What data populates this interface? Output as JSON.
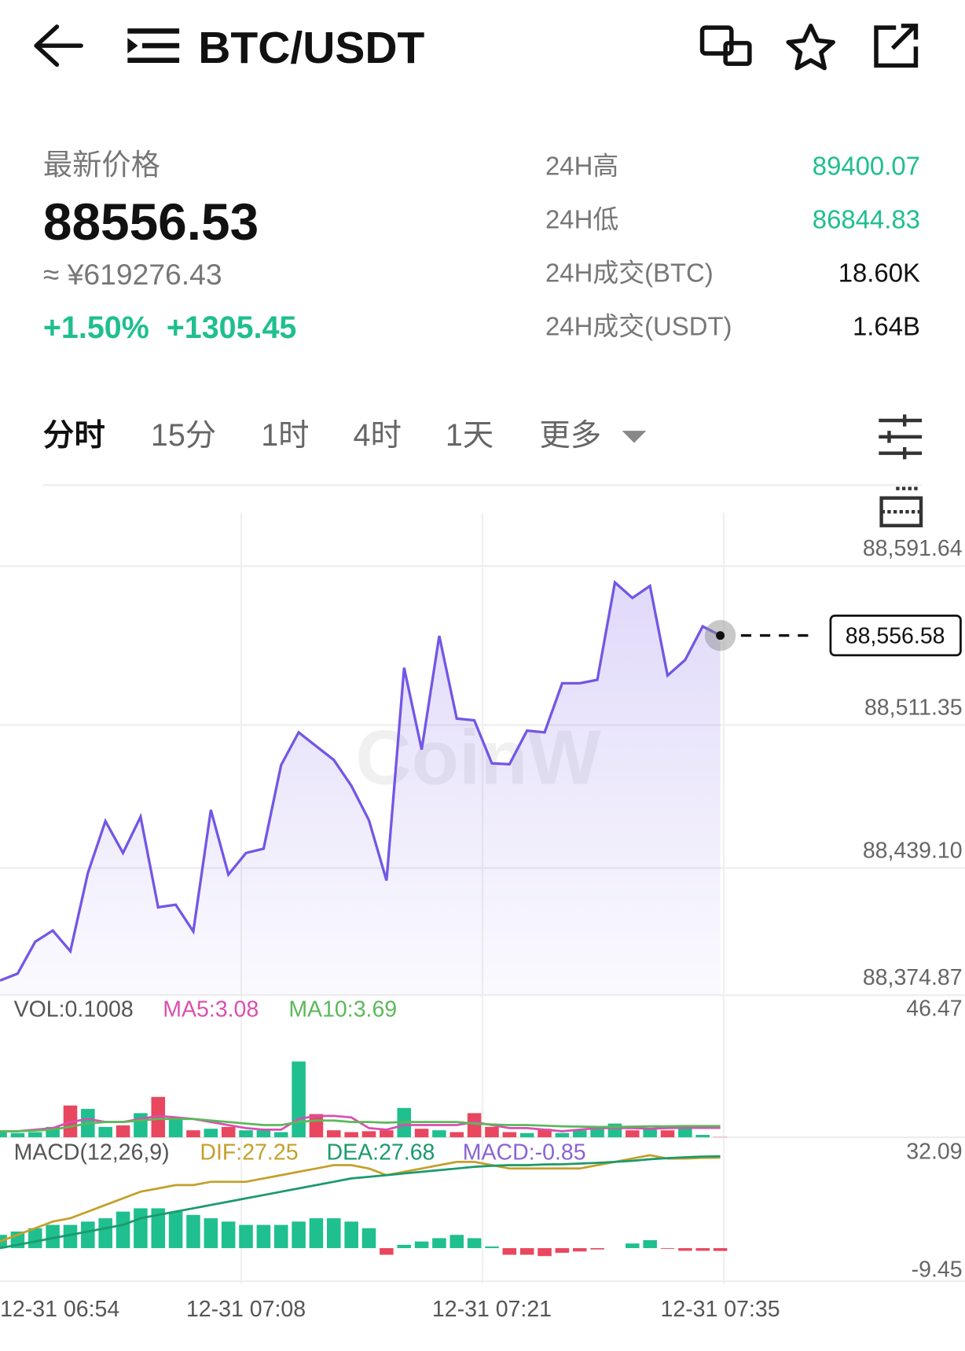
{
  "header": {
    "title": "BTC/USDT"
  },
  "price": {
    "label": "最新价格",
    "last": "88556.53",
    "cny": "≈ ¥619276.43",
    "change": "+1.50%  +1305.45"
  },
  "stats": [
    {
      "label": "24H高",
      "value": "89400.07"
    },
    {
      "label": "24H低",
      "value": "86844.83"
    },
    {
      "label": "24H成交(BTC)",
      "value": "18.60K"
    },
    {
      "label": "24H成交(USDT)",
      "value": "1.64B"
    }
  ],
  "tabs": [
    "分时",
    "15分",
    "1时",
    "4时",
    "1天",
    "更多"
  ],
  "chart_data": [
    {
      "type": "line",
      "watermark": "CoinW",
      "last_label": "88,556.58",
      "categories": [
        "12-31 06:54",
        null,
        null,
        null,
        null,
        null,
        null,
        null,
        null,
        null,
        null,
        null,
        null,
        null,
        "12-31 07:08",
        null,
        null,
        null,
        null,
        null,
        null,
        null,
        null,
        null,
        null,
        null,
        null,
        null,
        "12-31 07:21",
        null,
        null,
        null,
        null,
        null,
        null,
        null,
        null,
        null,
        null,
        null,
        null,
        "12-31 07:35"
      ],
      "series": [
        {
          "name": "price",
          "color": "#7356e6",
          "values": [
            88382.27,
            88385.75,
            88401.86,
            88407.52,
            88397.07,
            88436.68,
            88462.8,
            88446.69,
            88464.97,
            88419.27,
            88420.58,
            88407.08,
            88468.46,
            88435.81,
            88446.69,
            88448.87,
            88491.09,
            88507.63,
            88500.67,
            88493.7,
            88480.64,
            88463.23,
            88432.76,
            88540.28,
            88498.93,
            88556.38,
            88514.6,
            88513.72,
            88491.96,
            88491.53,
            88508.5,
            88507.63,
            88532.44,
            88532.44,
            88534.18,
            88583.37,
            88575.53,
            88581.63,
            88536.36,
            88544.19,
            88561.17,
            88556.58
          ]
        }
      ],
      "ylim": [
        88374.87,
        88591.64
      ],
      "yticks": [
        {
          "value": 88591.64,
          "label": "88,591.64"
        },
        {
          "value": 88511.35,
          "label": "88,511.35"
        },
        {
          "value": 88439.1,
          "label": "88,439.10"
        },
        {
          "value": 88374.87,
          "label": "88,374.87"
        }
      ],
      "grid": true
    },
    {
      "type": "bar",
      "up_color": "#1fbf8f",
      "down_color": "#e8475f",
      "series": [
        {
          "name": "VOL:0.1008",
          "color": "#1fbf8f",
          "values": [
            2.3,
            1.4,
            1.7,
            3.4,
            10.4,
            9.3,
            3.4,
            3.9,
            7.9,
            13.2,
            6.2,
            2.3,
            2.8,
            3.4,
            2.3,
            2.3,
            1.7,
            24.8,
            7.6,
            2.3,
            1.7,
            2.0,
            2.3,
            9.6,
            2.8,
            2.3,
            1.7,
            7.9,
            3.4,
            1.7,
            1.4,
            2.8,
            1.4,
            2.3,
            2.8,
            4.5,
            2.3,
            2.8,
            2.3,
            3.4,
            0.8,
            0.1008
          ]
        },
        {
          "name": "MA5:3.08",
          "color": "#d94fb0",
          "values": [
            2,
            2,
            2.5,
            3,
            5,
            6,
            5,
            5,
            6,
            7,
            6.5,
            6,
            5,
            4,
            3,
            2.5,
            2.5,
            6,
            7,
            7,
            6.5,
            3,
            2.5,
            4,
            4,
            4,
            4,
            5,
            4,
            3,
            3,
            2.5,
            2,
            2.5,
            3,
            3,
            3,
            2.8,
            3,
            3.1,
            3.08,
            3.08
          ]
        },
        {
          "name": "MA10:3.69",
          "color": "#5cb85c",
          "values": [
            2,
            2,
            2.2,
            2.5,
            3.5,
            4.5,
            5,
            5,
            5.5,
            6,
            6,
            6,
            5.5,
            5,
            4.5,
            4,
            4,
            5,
            5.5,
            5.5,
            5,
            5,
            4.8,
            5,
            5,
            5,
            5,
            4.5,
            4.2,
            4,
            4,
            3.8,
            3.6,
            3.5,
            3.4,
            3.4,
            3.5,
            3.6,
            3.6,
            3.7,
            3.7,
            3.69
          ]
        }
      ],
      "ylim": [
        0,
        46.47
      ],
      "yticks": [
        46.47
      ]
    },
    {
      "type": "macd",
      "title": "MACD(12,26,9)",
      "up_color": "#1fbf8f",
      "down_color": "#e8475f",
      "series": [
        {
          "name": "DIF:27.25",
          "color": "#c4a02a",
          "values": [
            2,
            4,
            6,
            8,
            9,
            11,
            13,
            15,
            17,
            18,
            19,
            19,
            20,
            20,
            20,
            21,
            22,
            23,
            24,
            25,
            25,
            24,
            22,
            23,
            24,
            25,
            26,
            26,
            25,
            24,
            24,
            24,
            24,
            24,
            25,
            26,
            27,
            28,
            27,
            27,
            27.2,
            27.25
          ]
        },
        {
          "name": "DEA:27.68",
          "color": "#1a9a6c",
          "values": [
            0,
            1,
            2,
            3,
            4,
            5,
            6,
            7,
            9,
            10,
            11,
            12,
            13,
            14,
            15,
            16,
            17,
            18,
            19,
            20,
            21,
            21.5,
            22,
            22.5,
            23,
            23.5,
            24,
            24.5,
            24.8,
            25,
            25,
            25.2,
            25.3,
            25.5,
            25.7,
            26,
            26.3,
            26.8,
            27.1,
            27.4,
            27.6,
            27.68
          ]
        },
        {
          "name": "MACD:-0.85",
          "color": "#8a63d2",
          "values": [
            4,
            5,
            6,
            7,
            7,
            8,
            9,
            11,
            12,
            12,
            11,
            10,
            9,
            8,
            7,
            7,
            7,
            8,
            9,
            9,
            8,
            6,
            -2,
            1,
            2,
            3,
            4,
            3,
            0.5,
            -2,
            -2,
            -2.4,
            -1.4,
            -1,
            -0.4,
            0,
            1.4,
            2.4,
            -0.2,
            -0.8,
            -0.8,
            -0.85
          ]
        }
      ],
      "ylim": [
        -9.45,
        32.09
      ],
      "yticks": [
        32.09,
        -9.45
      ]
    }
  ]
}
